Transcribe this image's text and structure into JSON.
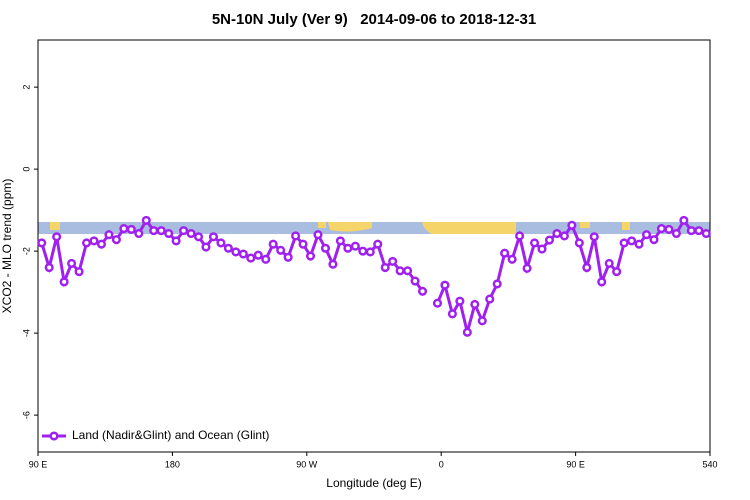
{
  "chart_data": {
    "type": "line",
    "title": "5N-10N July (Ver 9)   2014-09-06 to 2018-12-31",
    "xlabel": "Longitude (deg E)",
    "ylabel": "XCO2 - MLO trend (ppm)",
    "x": [
      92.5,
      97.5,
      102.5,
      107.5,
      112.5,
      117.5,
      122.5,
      127.5,
      132.5,
      137.5,
      142.5,
      147.5,
      152.5,
      157.5,
      162.5,
      167.5,
      172.5,
      177.5,
      182.5,
      187.5,
      192.5,
      197.5,
      202.5,
      207.5,
      212.5,
      217.5,
      222.5,
      227.5,
      232.5,
      237.5,
      242.5,
      247.5,
      252.5,
      257.5,
      262.5,
      267.5,
      272.5,
      277.5,
      282.5,
      287.5,
      292.5,
      297.5,
      302.5,
      307.5,
      312.5,
      317.5,
      322.5,
      327.5,
      332.5,
      337.5,
      342.5,
      347.5,
      352.5,
      357.5,
      362.5,
      367.5,
      372.5,
      377.5,
      382.5,
      387.5,
      392.5,
      397.5,
      402.5,
      407.5,
      412.5,
      417.5,
      422.5,
      427.5,
      432.5,
      437.5,
      442.5,
      447.5,
      452.5,
      457.5,
      462.5,
      467.5,
      472.5,
      477.5,
      482.5,
      487.5,
      492.5,
      497.5,
      502.5,
      507.5,
      512.5,
      517.5,
      522.5,
      527.5,
      532.5,
      537.5
    ],
    "series": [
      {
        "name": "Land (Nadir&Glint) and Ocean (Glint)",
        "color": "#a020f0",
        "values": [
          -1.8,
          -2.4,
          -1.65,
          -2.75,
          -2.3,
          -2.5,
          -1.8,
          -1.75,
          -1.83,
          -1.6,
          -1.72,
          -1.45,
          -1.47,
          -1.57,
          -1.25,
          -1.5,
          -1.5,
          -1.57,
          -1.75,
          -1.5,
          -1.57,
          -1.65,
          -1.9,
          -1.65,
          -1.8,
          -1.93,
          -2.02,
          -2.07,
          -2.17,
          -2.1,
          -2.2,
          -1.83,
          -1.98,
          -2.15,
          -1.63,
          -1.83,
          -2.12,
          -1.6,
          -1.93,
          -2.32,
          -1.75,
          -1.93,
          -1.88,
          -2.0,
          -2.02,
          -1.83,
          -2.4,
          -2.25,
          -2.48,
          -2.48,
          -2.73,
          -2.98,
          null,
          -3.27,
          -2.83,
          -3.53,
          -3.22,
          -3.98,
          -3.3,
          -3.7,
          -3.17,
          -2.8,
          -2.05,
          -2.2,
          -1.63,
          -2.42,
          -1.8,
          -1.95,
          -1.73,
          -1.57,
          -1.63,
          -1.37,
          -1.8,
          -2.4,
          -1.65,
          -2.75,
          -2.3,
          -2.5,
          -1.8,
          -1.75,
          -1.83,
          -1.6,
          -1.72,
          -1.45,
          -1.47,
          -1.57,
          -1.25,
          -1.5,
          -1.5,
          -1.57
        ]
      }
    ],
    "xlim": [
      90,
      540
    ],
    "xticks": [
      {
        "value": 90,
        "label": "90 E"
      },
      180,
      {
        "value": 270,
        "label": "90 W"
      },
      {
        "value": 360,
        "label": "0"
      },
      {
        "value": 450,
        "label": "90 E"
      },
      540
    ],
    "ylim": [
      -6.9,
      3.15
    ],
    "yticks": [
      -6,
      -4,
      -2,
      0,
      2
    ],
    "legend": "bottom-left"
  }
}
